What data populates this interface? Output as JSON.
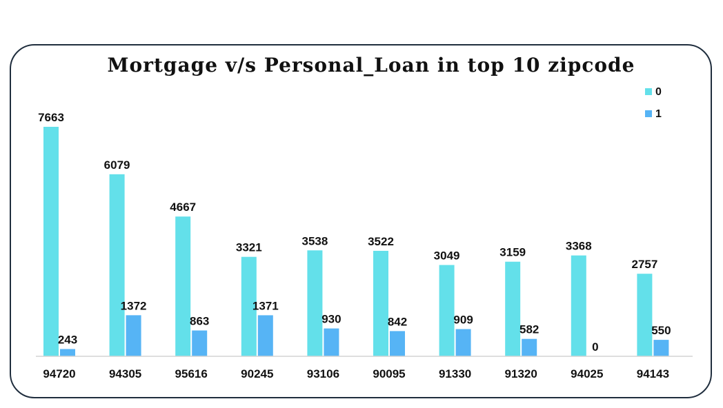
{
  "chart_data": {
    "type": "bar",
    "title": "Mortgage v/s Personal_Loan in top 10 zipcode",
    "categories": [
      "94720",
      "94305",
      "95616",
      "90245",
      "93106",
      "90095",
      "91330",
      "91320",
      "94025",
      "94143"
    ],
    "series": [
      {
        "name": "0",
        "color": "#63e0ea",
        "values": [
          7663,
          6079,
          4667,
          3321,
          3538,
          3522,
          3049,
          3159,
          3368,
          2757
        ]
      },
      {
        "name": "1",
        "color": "#56b4f5",
        "values": [
          243,
          1372,
          863,
          1371,
          930,
          842,
          909,
          582,
          0,
          550
        ]
      }
    ],
    "ylim": [
      0,
      7663
    ],
    "grid": false,
    "legend": "top-right",
    "xlabel": "",
    "ylabel": ""
  }
}
